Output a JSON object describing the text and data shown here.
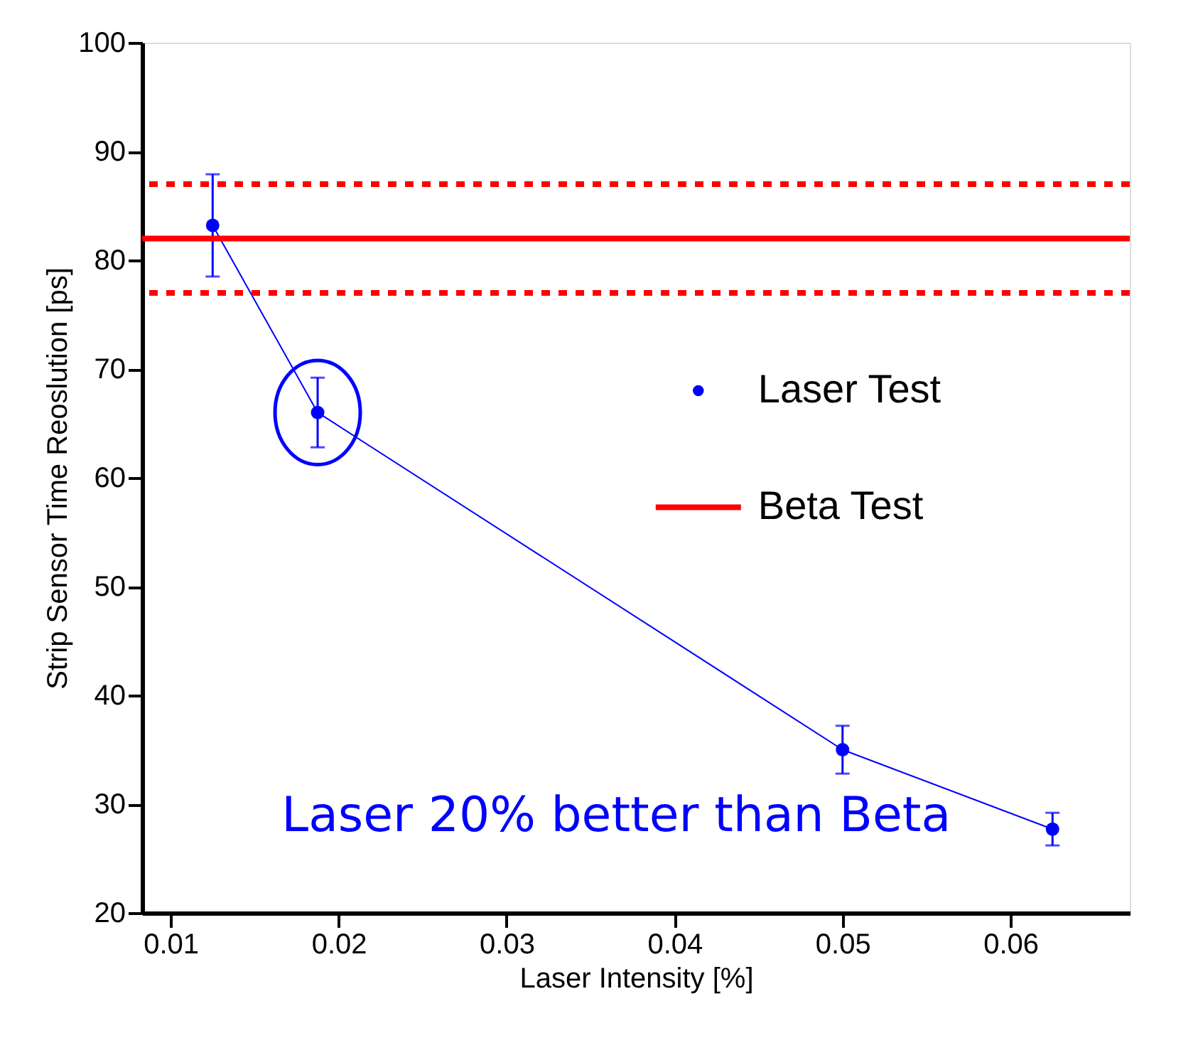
{
  "chart_data": {
    "type": "line",
    "xlabel": "Laser Intensity [%]",
    "ylabel": "Strip Sensor Time Reoslution [ps]",
    "x": [
      0.0125,
      0.01875,
      0.05,
      0.0625
    ],
    "series": [
      {
        "name": "Laser Test",
        "color": "#0000ff",
        "values": [
          83.2,
          66.0,
          35.0,
          27.7
        ],
        "errors": [
          4.7,
          3.2,
          2.2,
          1.5
        ]
      }
    ],
    "marker": "circle",
    "line_style": "solid",
    "xlim": [
      0.0083,
      0.0671
    ],
    "xticks": [
      0.01,
      0.02,
      0.03,
      0.04,
      0.05,
      0.06
    ],
    "ylim": [
      20,
      100
    ],
    "yticks": [
      20,
      30,
      40,
      50,
      60,
      70,
      80,
      90,
      100
    ],
    "ref_lines": [
      {
        "axis": "y",
        "value": 87,
        "label": null,
        "color": "#ff0000",
        "line_style": "dotted"
      },
      {
        "axis": "y",
        "value": 82,
        "label": "Beta Test",
        "color": "#ff0000",
        "line_style": "solid"
      },
      {
        "axis": "y",
        "value": 77,
        "label": null,
        "color": "#ff0000",
        "line_style": "dotted"
      }
    ],
    "annotations": [
      "Laser 20% better than Beta"
    ],
    "legend": "right",
    "grid": false
  }
}
